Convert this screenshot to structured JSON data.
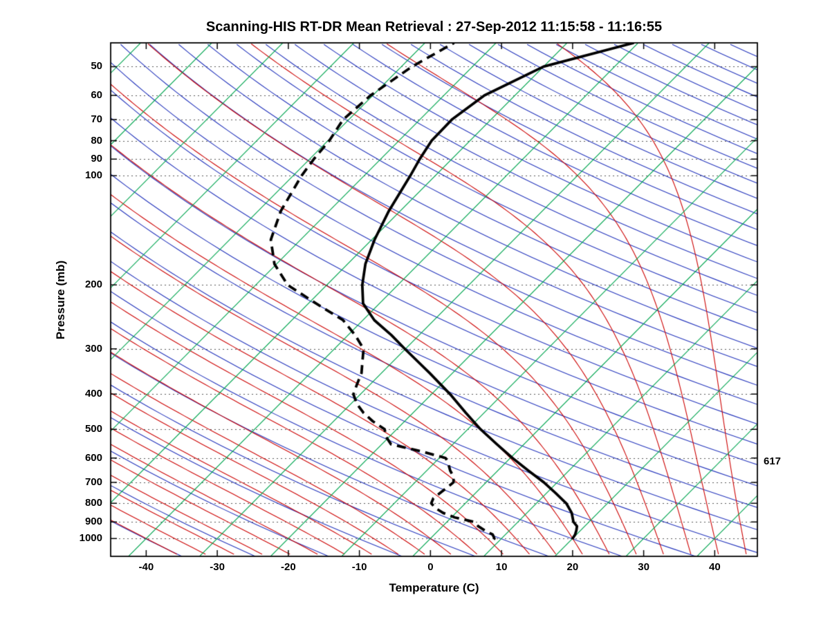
{
  "chart_data": {
    "type": "line",
    "variant": "skew-t-log-p-sounding",
    "title": "Scanning-HIS RT-DR Mean Retrieval : 27-Sep-2012 11:15:58 - 11:16:55",
    "xlabel": "Temperature (C)",
    "ylabel": "Pressure (mb)",
    "annotation_right": {
      "text": "617",
      "pressure_mb": 620
    },
    "x_ticks": [
      -40,
      -30,
      -20,
      -10,
      0,
      10,
      20,
      30,
      40
    ],
    "y_ticks": [
      50,
      60,
      70,
      80,
      90,
      100,
      200,
      300,
      400,
      500,
      600,
      700,
      800,
      900,
      1000
    ],
    "xlim": [
      -45,
      46
    ],
    "plim": [
      43,
      1120
    ],
    "skew_C_per_lnp": 22,
    "grid_on": true,
    "legend_position": "none",
    "series": [
      {
        "name": "temperature",
        "line": "solid",
        "color": "#000000",
        "width": 3.8,
        "points_p_mb_T_C": [
          [
            1005,
            20.1
          ],
          [
            1000,
            20.0
          ],
          [
            975,
            19.8
          ],
          [
            950,
            19.4
          ],
          [
            925,
            18.9
          ],
          [
            900,
            17.8
          ],
          [
            850,
            16.3
          ],
          [
            800,
            14.2
          ],
          [
            750,
            11.3
          ],
          [
            700,
            8.1
          ],
          [
            650,
            4.3
          ],
          [
            600,
            0.3
          ],
          [
            550,
            -3.8
          ],
          [
            500,
            -8.2
          ],
          [
            450,
            -12.6
          ],
          [
            400,
            -17.4
          ],
          [
            350,
            -23.2
          ],
          [
            300,
            -30.1
          ],
          [
            275,
            -33.9
          ],
          [
            250,
            -38.4
          ],
          [
            225,
            -42.3
          ],
          [
            200,
            -45.0
          ],
          [
            175,
            -47.5
          ],
          [
            150,
            -49.6
          ],
          [
            125,
            -51.6
          ],
          [
            100,
            -53.5
          ],
          [
            90,
            -54.5
          ],
          [
            80,
            -55.4
          ],
          [
            70,
            -55.5
          ],
          [
            60,
            -54.3
          ],
          [
            50,
            -50.0
          ],
          [
            43,
            -40.6
          ]
        ]
      },
      {
        "name": "dewpoint",
        "line": "dashed",
        "color": "#000000",
        "width": 3.8,
        "points_p_mb_T_C": [
          [
            1005,
            9.0
          ],
          [
            1000,
            9.0
          ],
          [
            975,
            8.2
          ],
          [
            950,
            6.5
          ],
          [
            925,
            5.0
          ],
          [
            900,
            3.8
          ],
          [
            875,
            0.5
          ],
          [
            850,
            -1.8
          ],
          [
            825,
            -3.5
          ],
          [
            800,
            -4.8
          ],
          [
            775,
            -5.2
          ],
          [
            750,
            -5.0
          ],
          [
            725,
            -4.8
          ],
          [
            700,
            -4.6
          ],
          [
            675,
            -5.4
          ],
          [
            650,
            -6.7
          ],
          [
            625,
            -7.8
          ],
          [
            600,
            -9.1
          ],
          [
            575,
            -13.5
          ],
          [
            550,
            -18.7
          ],
          [
            525,
            -20.4
          ],
          [
            500,
            -21.7
          ],
          [
            475,
            -24.5
          ],
          [
            450,
            -27.0
          ],
          [
            425,
            -29.2
          ],
          [
            400,
            -31.0
          ],
          [
            375,
            -31.9
          ],
          [
            350,
            -32.8
          ],
          [
            325,
            -34.3
          ],
          [
            300,
            -35.9
          ],
          [
            275,
            -39.0
          ],
          [
            250,
            -42.8
          ],
          [
            225,
            -48.9
          ],
          [
            200,
            -55.5
          ],
          [
            175,
            -60.3
          ],
          [
            150,
            -64.2
          ],
          [
            125,
            -66.8
          ],
          [
            100,
            -68.8
          ],
          [
            90,
            -69.4
          ],
          [
            80,
            -69.8
          ],
          [
            70,
            -70.8
          ],
          [
            60,
            -70.3
          ],
          [
            50,
            -68.5
          ],
          [
            43,
            -65.9
          ]
        ]
      }
    ],
    "background_lines": {
      "isobars": {
        "name": "isobars",
        "style": "dotted",
        "color": "#555555",
        "levels": [
          50,
          60,
          70,
          80,
          90,
          100,
          200,
          300,
          400,
          500,
          600,
          700,
          800,
          900,
          1000
        ]
      },
      "isotherms_C": {
        "name": "isotherms",
        "color": "#00A550",
        "from": -110,
        "to": 40,
        "step": 10
      },
      "dry_adiabats_K": {
        "name": "dry-adiabats",
        "color": "#2233BB",
        "from": 213,
        "to": 613,
        "step": 10
      },
      "moist_adiabats_C": {
        "name": "moist-adiabats",
        "color": "#CC0000",
        "from": -40,
        "to": 44,
        "step": 4
      }
    }
  }
}
